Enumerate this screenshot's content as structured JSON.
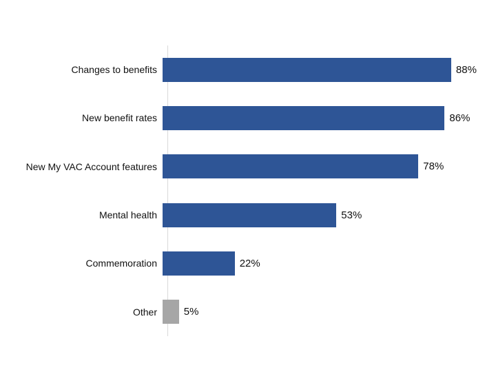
{
  "chart_data": {
    "type": "bar",
    "orientation": "horizontal",
    "title": "",
    "categories": [
      "Changes to benefits",
      "New benefit rates",
      "New My VAC Account features",
      "Mental health",
      "Commemoration",
      "Other"
    ],
    "values": [
      88,
      86,
      78,
      53,
      22,
      5
    ],
    "value_labels": [
      "88%",
      "86%",
      "78%",
      "53%",
      "22%",
      "5%"
    ],
    "bar_colors": [
      "#2E5596",
      "#2E5596",
      "#2E5596",
      "#2E5596",
      "#2E5596",
      "#A6A6A6"
    ],
    "xlim": [
      0,
      100
    ],
    "grid": false,
    "legend": "none",
    "axis_line_color": "#D9D9D9",
    "text_color": "#101010"
  }
}
